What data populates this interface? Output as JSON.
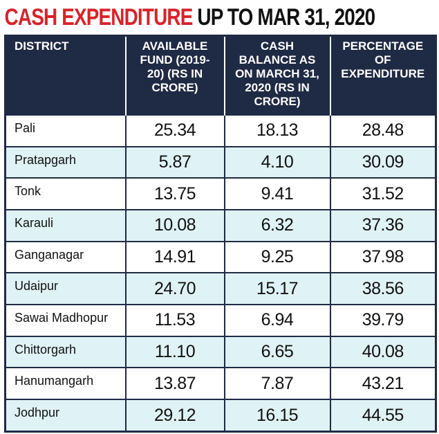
{
  "title": {
    "highlight": "CASH EXPENDITURE",
    "rest": "UP TO MAR 31, 2020"
  },
  "table": {
    "header": [
      "DISTRICT",
      "AVAILABLE FUND (2019-20) (RS IN CRORE)",
      "CASH BALANCE AS ON MARCH 31, 2020 (RS IN CRORE)",
      "PERCENTAGE OF EXPENDITURE"
    ],
    "rows": [
      [
        "Pali",
        "25.34",
        "18.13",
        "28.48"
      ],
      [
        "Pratapgarh",
        "5.87",
        "4.10",
        "30.09"
      ],
      [
        "Tonk",
        "13.75",
        "9.41",
        "31.52"
      ],
      [
        "Karauli",
        "10.08",
        "6.32",
        "37.36"
      ],
      [
        "Ganganagar",
        "14.91",
        "9.25",
        "37.98"
      ],
      [
        "Udaipur",
        "24.70",
        "15.17",
        "38.56"
      ],
      [
        "Sawai Madhopur",
        "11.53",
        "6.94",
        "39.79"
      ],
      [
        "Chittorgarh",
        "11.10",
        "6.65",
        "40.08"
      ],
      [
        "Hanumangarh",
        "13.87",
        "7.87",
        "43.21"
      ],
      [
        "Jodhpur",
        "29.12",
        "16.15",
        "44.55"
      ]
    ]
  }
}
